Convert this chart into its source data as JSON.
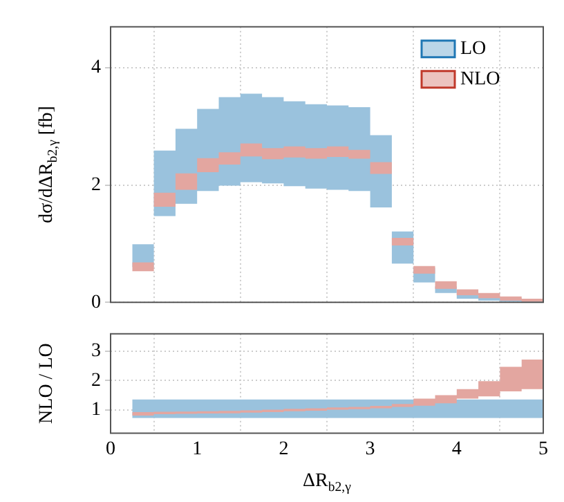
{
  "chart_data": [
    {
      "type": "step",
      "ylabel": "dσ/dΔR$_{b2,γ}$ [fb]",
      "x": [
        0.25,
        0.5,
        0.75,
        1.0,
        1.25,
        1.5,
        1.75,
        2.0,
        2.25,
        2.5,
        2.75,
        3.0,
        3.25,
        3.5,
        3.75,
        4.0,
        4.25,
        4.5,
        4.75,
        5.0
      ],
      "series": [
        {
          "name": "LO",
          "color": "#1f77b4",
          "values": [
            null,
            null,
            null,
            null,
            null,
            null,
            null,
            null,
            null,
            null,
            null,
            null,
            null,
            null,
            null,
            null,
            null,
            null,
            null,
            null
          ],
          "lower": [
            0.6,
            1.47,
            1.68,
            1.9,
            1.99,
            2.05,
            2.03,
            1.98,
            1.94,
            1.92,
            1.9,
            1.62,
            0.66,
            0.34,
            0.16,
            0.06,
            0.03,
            0.01,
            0.0,
            0.0
          ],
          "upper": [
            0.99,
            2.59,
            2.96,
            3.3,
            3.5,
            3.56,
            3.5,
            3.43,
            3.38,
            3.36,
            3.33,
            2.85,
            1.21,
            0.59,
            0.27,
            0.16,
            0.1,
            0.07,
            0.04,
            0.04
          ]
        },
        {
          "name": "NLO",
          "color": "#c0392b",
          "values": [
            null,
            null,
            null,
            null,
            null,
            null,
            null,
            null,
            null,
            null,
            null,
            null,
            null,
            null,
            null,
            null,
            null,
            null,
            null,
            null
          ],
          "lower": [
            0.53,
            1.63,
            1.92,
            2.22,
            2.35,
            2.49,
            2.44,
            2.47,
            2.45,
            2.48,
            2.45,
            2.19,
            0.97,
            0.49,
            0.23,
            0.12,
            0.07,
            0.03,
            0.01,
            0.01
          ],
          "upper": [
            0.68,
            1.87,
            2.2,
            2.46,
            2.56,
            2.71,
            2.63,
            2.66,
            2.63,
            2.66,
            2.6,
            2.39,
            1.1,
            0.62,
            0.36,
            0.22,
            0.16,
            0.1,
            0.06,
            0.06
          ]
        }
      ],
      "xlim": [
        0,
        5
      ],
      "xticks": [
        0,
        1,
        2,
        3,
        4,
        5
      ],
      "ylim": [
        0,
        4.7
      ],
      "yticks": [
        0,
        2,
        4
      ],
      "grid": true,
      "legend": "top right",
      "tick_labels": "y"
    },
    {
      "type": "step",
      "xlabel": "ΔR$_{b2,γ}$",
      "ylabel": "NLO / LO",
      "x": [
        0.25,
        0.5,
        0.75,
        1.0,
        1.25,
        1.5,
        1.75,
        2.0,
        2.25,
        2.5,
        2.75,
        3.0,
        3.25,
        3.5,
        3.75,
        4.0,
        4.25,
        4.5,
        4.75,
        5.0
      ],
      "series": [
        {
          "color": "#1f77b4",
          "values": [
            null,
            null,
            null,
            null,
            null,
            null,
            null,
            null,
            null,
            null,
            null,
            null,
            null,
            null,
            null,
            null,
            null,
            null,
            null,
            null
          ],
          "lower": [
            0.72,
            0.72,
            0.72,
            0.72,
            0.72,
            0.72,
            0.72,
            0.72,
            0.72,
            0.72,
            0.72,
            0.72,
            0.72,
            0.72,
            0.72,
            0.72,
            0.72,
            0.72,
            0.72,
            0.72
          ],
          "upper": [
            1.35,
            1.35,
            1.35,
            1.35,
            1.35,
            1.35,
            1.35,
            1.35,
            1.35,
            1.35,
            1.35,
            1.35,
            1.35,
            1.35,
            1.35,
            1.35,
            1.35,
            1.35,
            1.35,
            1.35
          ]
        },
        {
          "color": "#c0392b",
          "values": [
            null,
            null,
            null,
            null,
            null,
            null,
            null,
            null,
            null,
            null,
            null,
            null,
            null,
            null,
            null,
            null,
            null,
            null,
            null,
            null
          ],
          "lower": [
            0.8,
            0.85,
            0.86,
            0.87,
            0.88,
            0.9,
            0.92,
            0.95,
            0.97,
            1.0,
            1.02,
            1.05,
            1.1,
            1.14,
            1.22,
            1.38,
            1.46,
            1.63,
            1.71,
            1.71
          ],
          "upper": [
            0.92,
            0.93,
            0.94,
            0.95,
            0.96,
            0.98,
            1.0,
            1.03,
            1.05,
            1.08,
            1.1,
            1.13,
            1.2,
            1.38,
            1.5,
            1.71,
            1.98,
            2.47,
            2.72,
            2.72
          ]
        }
      ],
      "xlim": [
        0,
        5
      ],
      "xticks": [
        0,
        1,
        2,
        3,
        4,
        5
      ],
      "ylim": [
        0.2,
        3.6
      ],
      "yticks": [
        1,
        2,
        3
      ],
      "grid": true
    }
  ]
}
